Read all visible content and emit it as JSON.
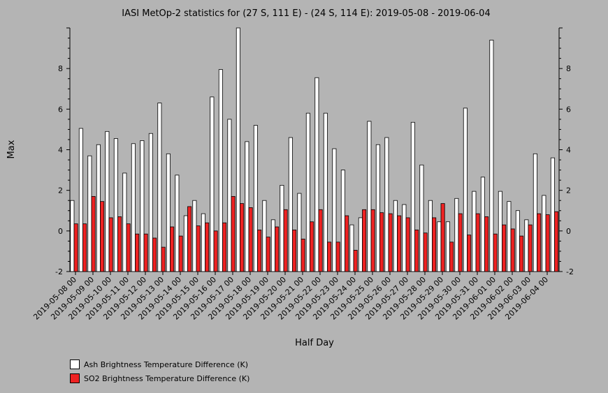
{
  "chart_data": {
    "type": "bar",
    "title": "IASI MetOp-2 statistics for (27 S, 111 E) - (24 S, 114 E): 2019-05-08 - 2019-06-04",
    "xlabel": "Half Day",
    "ylabel": "Max",
    "ylim": [
      -2,
      10
    ],
    "yticks": [
      -2,
      0,
      2,
      4,
      6,
      8
    ],
    "grid": false,
    "legend_position": "bottom-left",
    "x_tick_labels": [
      "2019-05-08 00",
      "2019-05-09 00",
      "2019-05-10 00",
      "2019-05-11 00",
      "2019-05-12 00",
      "2019-05-13 00",
      "2019-05-14 00",
      "2019-05-15 00",
      "2019-05-16 00",
      "2019-05-17 00",
      "2019-05-18 00",
      "2019-05-19 00",
      "2019-05-20 00",
      "2019-05-21 00",
      "2019-05-22 00",
      "2019-05-23 00",
      "2019-05-24 00",
      "2019-05-25 00",
      "2019-05-26 00",
      "2019-05-27 00",
      "2019-05-28 00",
      "2019-05-29 00",
      "2019-05-30 00",
      "2019-05-31 00",
      "2019-06-01 00",
      "2019-06-02 00",
      "2019-06-03 00",
      "2019-06-04 00"
    ],
    "series": [
      {
        "name": "Ash Brightness Temperature Difference (K)",
        "color": "#ffffff",
        "values": [
          1.5,
          5.05,
          3.7,
          4.25,
          4.9,
          4.55,
          2.85,
          4.3,
          4.45,
          4.8,
          6.3,
          3.8,
          2.75,
          0.75,
          1.5,
          0.85,
          6.6,
          7.95,
          5.5,
          10.0,
          4.4,
          5.2,
          1.5,
          0.55,
          2.25,
          4.6,
          1.85,
          5.8,
          7.55,
          5.8,
          4.05,
          3.0,
          0.3,
          0.65,
          5.4,
          4.25,
          4.6,
          1.5,
          1.3,
          5.35,
          3.25,
          1.5,
          0.45,
          0.45,
          1.6,
          6.05,
          1.95,
          2.65,
          9.4,
          1.95,
          1.45,
          1.0,
          0.55,
          3.8,
          1.75,
          3.6
        ]
      },
      {
        "name": "SO2 Brightness Temperature Difference (K)",
        "color": "#ee2222",
        "values": [
          0.35,
          0.35,
          1.7,
          1.45,
          0.65,
          0.7,
          0.35,
          -0.15,
          -0.15,
          -0.35,
          -0.8,
          0.2,
          -0.25,
          1.2,
          0.25,
          0.4,
          0.0,
          0.4,
          1.7,
          1.35,
          1.15,
          0.05,
          -0.3,
          0.2,
          1.05,
          0.05,
          -0.4,
          0.45,
          1.05,
          -0.55,
          -0.55,
          0.75,
          -0.95,
          1.05,
          1.05,
          0.9,
          0.85,
          0.75,
          0.65,
          0.05,
          -0.1,
          0.65,
          1.35,
          -0.55,
          0.85,
          -0.2,
          0.85,
          0.7,
          -0.15,
          0.3,
          0.1,
          -0.25,
          0.3,
          0.85,
          0.8,
          0.95
        ]
      }
    ]
  }
}
